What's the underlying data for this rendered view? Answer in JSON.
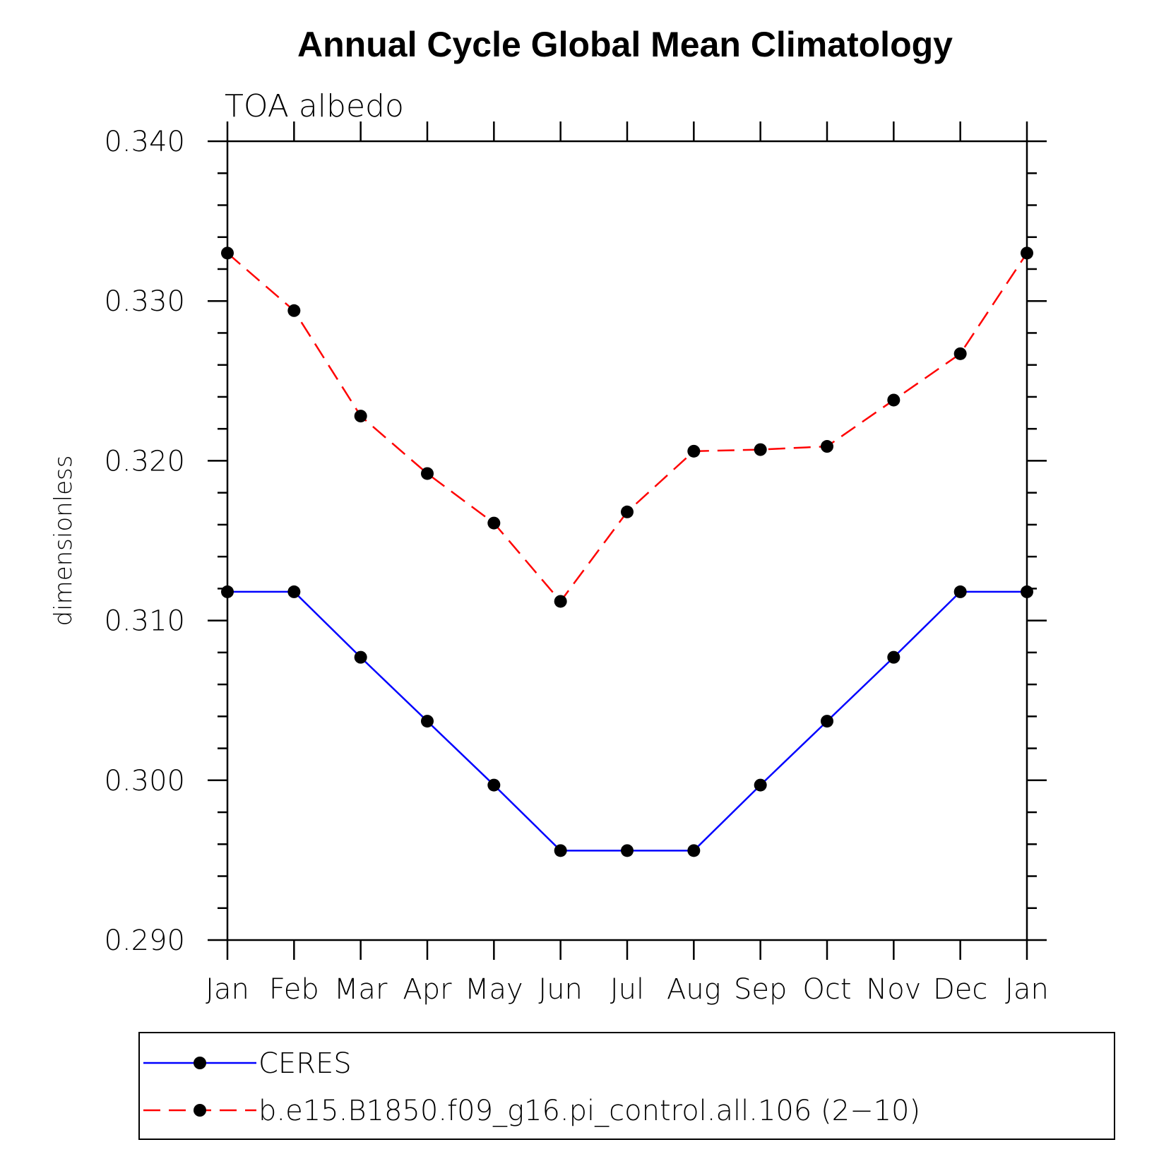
{
  "chart_data": {
    "type": "line",
    "title": "Annual Cycle Global Mean Climatology",
    "subtitle": "TOA albedo",
    "xlabel": "",
    "ylabel": "dimensionless",
    "categories": [
      "Jan",
      "Feb",
      "Mar",
      "Apr",
      "May",
      "Jun",
      "Jul",
      "Aug",
      "Sep",
      "Oct",
      "Nov",
      "Dec",
      "Jan"
    ],
    "ylim": [
      0.29,
      0.34
    ],
    "yticks": [
      "0.290",
      "0.300",
      "0.310",
      "0.320",
      "0.330",
      "0.340"
    ],
    "grid": false,
    "legend_position": "bottom",
    "series": [
      {
        "name": "CERES",
        "color": "#0000ff",
        "dash": "solid",
        "marker": "filled-circle",
        "values": [
          0.3118,
          0.3118,
          0.3077,
          0.3037,
          0.2997,
          0.2956,
          0.2956,
          0.2956,
          0.2997,
          0.3037,
          0.3077,
          0.3118,
          0.3118
        ]
      },
      {
        "name": "b.e15.B1850.f09_g16.pi_control.all.106 (2−10)",
        "color": "#ff0000",
        "dash": "dashed",
        "marker": "filled-circle",
        "values": [
          0.333,
          0.3294,
          0.3228,
          0.3192,
          0.3161,
          0.3112,
          0.3168,
          0.3206,
          0.3207,
          0.3209,
          0.3238,
          0.3267,
          0.333
        ]
      }
    ]
  }
}
